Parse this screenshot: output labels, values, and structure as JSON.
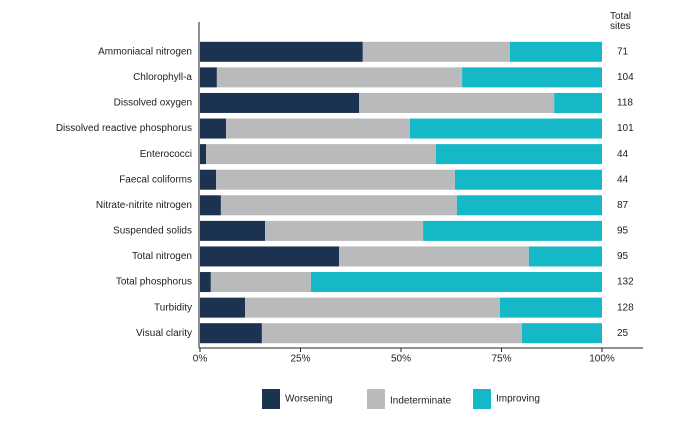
{
  "chart_data": {
    "type": "bar",
    "categories": [
      "Ammoniacal nitrogen",
      "Chlorophyll-a",
      "Dissolved oxygen",
      "Dissolved reactive phosphorus",
      "Enterococci",
      "Faecal coliforms",
      "Nitrate-nitrite nitrogen",
      "Suspended solids",
      "Total nitrogen",
      "Total phosphorus",
      "Turbidity",
      "Visual clarity"
    ],
    "series": [
      {
        "name": "Worsening",
        "color": "#1b3251",
        "values": [
          40.5,
          4.2,
          39.6,
          6.5,
          1.5,
          4.0,
          5.2,
          16.2,
          34.6,
          2.7,
          11.2,
          15.4
        ]
      },
      {
        "name": "Indeterminate",
        "color": "#b9babc",
        "values": [
          36.6,
          61.0,
          48.5,
          45.7,
          57.2,
          59.4,
          58.7,
          39.3,
          47.2,
          24.9,
          63.4,
          64.7
        ]
      },
      {
        "name": "Improving",
        "color": "#14b8c6",
        "values": [
          22.9,
          34.8,
          11.9,
          47.8,
          41.3,
          36.6,
          36.1,
          44.5,
          18.2,
          72.4,
          25.4,
          19.9
        ]
      }
    ],
    "xlim": [
      0,
      100
    ],
    "xticks": [
      {
        "value": 0,
        "label": "0%"
      },
      {
        "value": 25,
        "label": "25%"
      },
      {
        "value": 50,
        "label": "50%"
      },
      {
        "value": 75,
        "label": "75%"
      },
      {
        "value": 100,
        "label": "100%"
      }
    ],
    "total_sites_label": "Total sites",
    "total_sites": [
      71,
      104,
      118,
      101,
      44,
      44,
      87,
      95,
      95,
      132,
      128,
      25
    ],
    "legend": "bottom"
  }
}
